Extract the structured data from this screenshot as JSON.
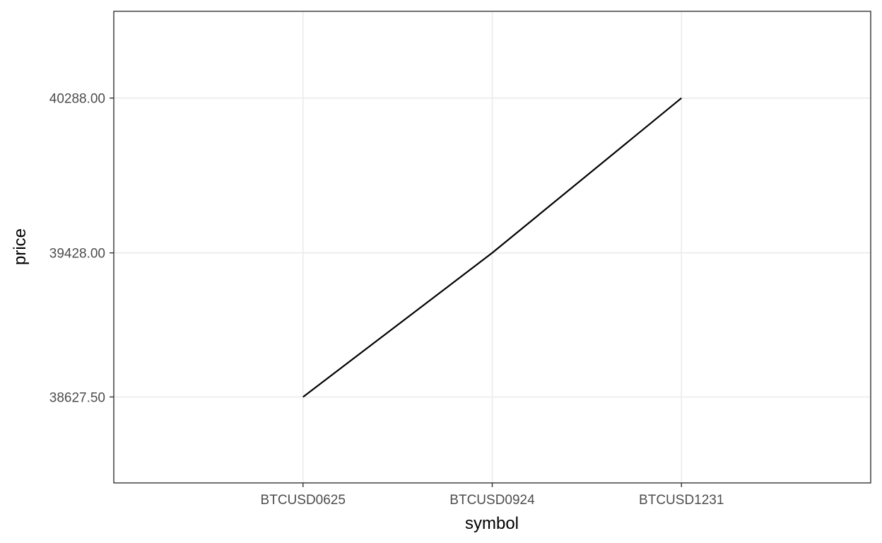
{
  "chart_data": {
    "type": "line",
    "title": "",
    "xlabel": "symbol",
    "ylabel": "price",
    "categories": [
      "BTCUSD0625",
      "BTCUSD0924",
      "BTCUSD1231"
    ],
    "series": [
      {
        "values": [
          38627.5,
          39428.0,
          40288.0
        ]
      }
    ],
    "y_ticks": [
      38627.5,
      39428.0,
      40288.0
    ],
    "y_tick_labels": [
      "38627.50",
      "39428.00",
      "40288.00"
    ],
    "ylim": [
      38150,
      40770
    ],
    "grid": true,
    "legend": "none",
    "colors": {
      "line": "#000000",
      "grid": "#ebebeb",
      "panel_border": "#333333",
      "tick_text": "#4d4d4d",
      "background": "#ffffff"
    }
  }
}
